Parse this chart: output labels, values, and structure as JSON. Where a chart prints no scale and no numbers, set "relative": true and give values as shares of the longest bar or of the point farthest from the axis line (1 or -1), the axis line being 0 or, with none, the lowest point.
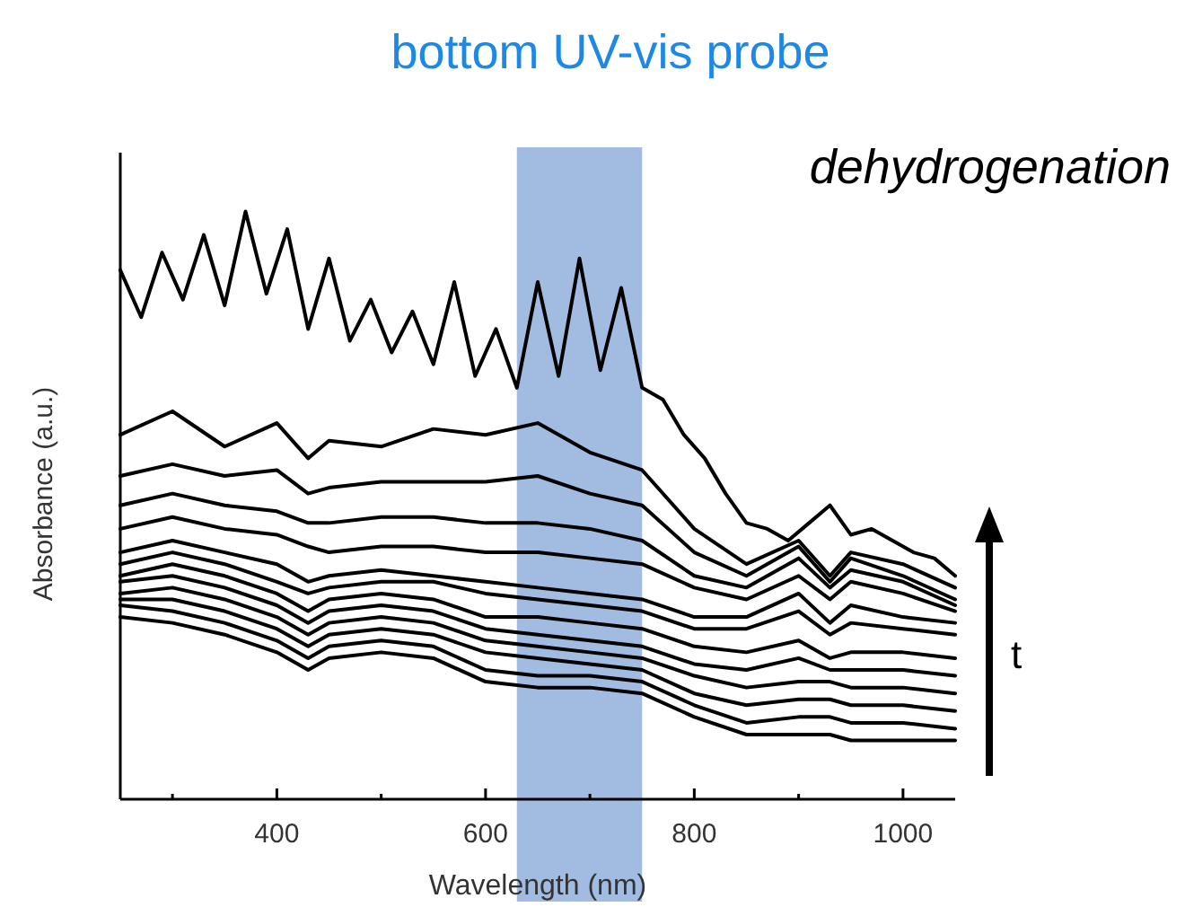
{
  "chart_data": {
    "type": "line",
    "title": "bottom UV-vis probe",
    "xlabel": "Wavelength (nm)",
    "ylabel": "Absorbance (a.u.)",
    "relative": true,
    "tick_labels": "x",
    "grid": false,
    "marker": "none",
    "line_style": "solid",
    "xlim": [
      250,
      1050
    ],
    "xticks": [
      {
        "value": 300,
        "label": null
      },
      400,
      {
        "value": 500,
        "label": null
      },
      600,
      {
        "value": 700,
        "label": null
      },
      800,
      {
        "value": 900,
        "label": null
      },
      1000
    ],
    "x": [
      250,
      300,
      350,
      400,
      430,
      450,
      500,
      550,
      600,
      650,
      700,
      750,
      800,
      850,
      900,
      930,
      950,
      1000,
      1050
    ],
    "series": [
      {
        "color": "#000000",
        "values": [
          0.31,
          0.3,
          0.28,
          0.25,
          0.22,
          0.24,
          0.25,
          0.24,
          0.2,
          0.19,
          0.19,
          0.18,
          0.14,
          0.11,
          0.11,
          0.11,
          0.1,
          0.1,
          0.1
        ]
      },
      {
        "color": "#000000",
        "values": [
          0.33,
          0.32,
          0.3,
          0.27,
          0.24,
          0.26,
          0.27,
          0.26,
          0.22,
          0.21,
          0.21,
          0.2,
          0.16,
          0.13,
          0.14,
          0.14,
          0.13,
          0.13,
          0.12
        ]
      },
      {
        "color": "#000000",
        "values": [
          0.34,
          0.34,
          0.32,
          0.29,
          0.26,
          0.28,
          0.29,
          0.28,
          0.25,
          0.24,
          0.23,
          0.22,
          0.18,
          0.16,
          0.17,
          0.17,
          0.16,
          0.16,
          0.15
        ]
      },
      {
        "color": "#000000",
        "values": [
          0.35,
          0.36,
          0.34,
          0.31,
          0.28,
          0.3,
          0.31,
          0.3,
          0.27,
          0.26,
          0.25,
          0.24,
          0.21,
          0.19,
          0.2,
          0.2,
          0.19,
          0.19,
          0.18
        ]
      },
      {
        "color": "#000000",
        "values": [
          0.37,
          0.38,
          0.36,
          0.33,
          0.3,
          0.32,
          0.33,
          0.32,
          0.29,
          0.28,
          0.27,
          0.26,
          0.23,
          0.22,
          0.24,
          0.22,
          0.22,
          0.22,
          0.21
        ]
      },
      {
        "color": "#000000",
        "values": [
          0.38,
          0.4,
          0.38,
          0.35,
          0.32,
          0.34,
          0.35,
          0.34,
          0.31,
          0.31,
          0.3,
          0.29,
          0.26,
          0.25,
          0.27,
          0.24,
          0.25,
          0.25,
          0.24
        ]
      },
      {
        "color": "#000000",
        "values": [
          0.4,
          0.42,
          0.4,
          0.37,
          0.35,
          0.36,
          0.37,
          0.37,
          0.35,
          0.34,
          0.33,
          0.32,
          0.29,
          0.29,
          0.32,
          0.28,
          0.3,
          0.29,
          0.28
        ]
      },
      {
        "color": "#000000",
        "values": [
          0.42,
          0.44,
          0.42,
          0.4,
          0.37,
          0.38,
          0.39,
          0.38,
          0.37,
          0.36,
          0.35,
          0.34,
          0.31,
          0.31,
          0.35,
          0.3,
          0.33,
          0.31,
          0.3
        ]
      },
      {
        "color": "#000000",
        "values": [
          0.46,
          0.48,
          0.46,
          0.45,
          0.43,
          0.42,
          0.43,
          0.43,
          0.42,
          0.42,
          0.41,
          0.4,
          0.36,
          0.34,
          0.38,
          0.34,
          0.37,
          0.35,
          0.32
        ]
      },
      {
        "color": "#000000",
        "values": [
          0.5,
          0.52,
          0.5,
          0.49,
          0.47,
          0.47,
          0.48,
          0.48,
          0.47,
          0.47,
          0.46,
          0.44,
          0.38,
          0.36,
          0.41,
          0.36,
          0.39,
          0.37,
          0.33
        ]
      },
      {
        "color": "#000000",
        "values": [
          0.55,
          0.57,
          0.55,
          0.56,
          0.52,
          0.53,
          0.54,
          0.54,
          0.54,
          0.55,
          0.52,
          0.5,
          0.42,
          0.38,
          0.43,
          0.37,
          0.41,
          0.38,
          0.34
        ]
      },
      {
        "color": "#000000",
        "values": [
          0.62,
          0.66,
          0.6,
          0.64,
          0.58,
          0.61,
          0.6,
          0.63,
          0.62,
          0.64,
          0.59,
          0.56,
          0.46,
          0.4,
          0.44,
          0.38,
          0.42,
          0.4,
          0.36
        ]
      },
      {
        "color": "#000000",
        "x": [
          250,
          270,
          290,
          310,
          330,
          350,
          370,
          390,
          410,
          430,
          450,
          470,
          490,
          510,
          530,
          550,
          570,
          590,
          610,
          630,
          650,
          670,
          690,
          710,
          730,
          750,
          770,
          790,
          810,
          830,
          850,
          870,
          890,
          910,
          930,
          950,
          970,
          990,
          1010,
          1030,
          1050
        ],
        "values": [
          0.9,
          0.82,
          0.93,
          0.85,
          0.96,
          0.84,
          1.0,
          0.86,
          0.97,
          0.8,
          0.92,
          0.78,
          0.85,
          0.76,
          0.83,
          0.74,
          0.88,
          0.72,
          0.8,
          0.7,
          0.88,
          0.72,
          0.92,
          0.73,
          0.87,
          0.7,
          0.68,
          0.62,
          0.58,
          0.52,
          0.47,
          0.46,
          0.44,
          0.47,
          0.5,
          0.45,
          0.46,
          0.44,
          0.42,
          0.41,
          0.38
        ]
      }
    ],
    "bands": [
      {
        "axis": "x",
        "from": 630,
        "to": 750,
        "color": "#6f98cf"
      }
    ],
    "annotations": [
      "dehydrogenation",
      "t"
    ]
  }
}
